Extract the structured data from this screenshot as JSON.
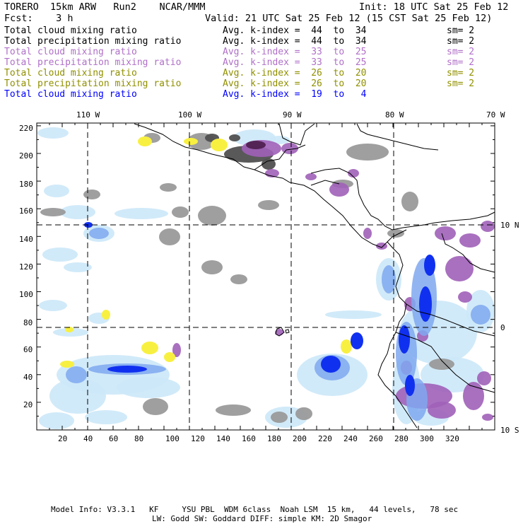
{
  "header": {
    "model_line": "TORERO  15km ARW   Run2    NCAR/MMM",
    "init": "Init: 18 UTC Sat 25 Feb 12",
    "fcst": "Fcst:    3 h",
    "valid": "Valid: 21 UTC Sat 25 Feb 12 (15 CST Sat 25 Feb 12)"
  },
  "legend": [
    {
      "field": "Total cloud mixing ratio",
      "kindex": "Avg. k-index =  44  to  34",
      "sm": "sm= 2",
      "color": "#000000"
    },
    {
      "field": "Total precipitation mixing ratio",
      "kindex": "Avg. k-index =  44  to  34",
      "sm": "sm= 2",
      "color": "#000000"
    },
    {
      "field": "Total cloud mixing ratio",
      "kindex": "Avg. k-index =  33  to  25",
      "sm": "sm= 2",
      "color": "#b070c8"
    },
    {
      "field": "Total precipitation mixing ratio",
      "kindex": "Avg. k-index =  33  to  25",
      "sm": "sm= 2",
      "color": "#b070c8"
    },
    {
      "field": "Total cloud mixing ratio",
      "kindex": "Avg. k-index =  26  to  20",
      "sm": "sm= 2",
      "color": "#909000"
    },
    {
      "field": "Total precipitation mixing ratio",
      "kindex": "Avg. k-index =  26  to  20",
      "sm": "sm= 2",
      "color": "#909000"
    },
    {
      "field": "Total cloud mixing ratio",
      "kindex": "Avg. k-index =  19  to   4",
      "sm": "",
      "color": "#0000ff"
    }
  ],
  "map": {
    "lon_labels": [
      "110 W",
      "100 W",
      "90 W",
      "80 W",
      "70 W"
    ],
    "lat_labels": [
      "10 N",
      "0",
      "10 S"
    ],
    "y_ticks": [
      "220",
      "200",
      "180",
      "160",
      "140",
      "120",
      "100",
      "80",
      "60",
      "40",
      "20"
    ],
    "x_ticks": [
      "20",
      "40",
      "60",
      "80",
      "100",
      "120",
      "140",
      "160",
      "180",
      "200",
      "220",
      "240",
      "260",
      "280",
      "300",
      "320"
    ],
    "colors": {
      "gray": "#9a9a9a",
      "dark_gray": "#505050",
      "purple": "#a060b8",
      "dark_purple": "#502050",
      "yellow": "#f8f040",
      "light_blue": "#cce8f8",
      "mid_blue": "#7fa8f0",
      "blue": "#1030f0"
    }
  },
  "footer": {
    "line1": "Model Info: V3.3.1   KF     YSU PBL  WDM 6class  Noah LSM  15 km,   44 levels,   78 sec",
    "line2": "LW: Godd SW: Goddard DIFF: simple KM: 2D Smagor"
  }
}
